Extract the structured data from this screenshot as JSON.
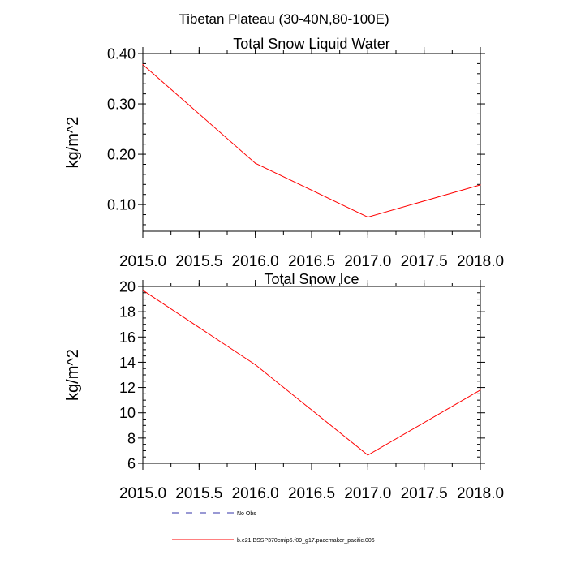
{
  "figure": {
    "title": "Tibetan Plateau (30-40N,80-100E)"
  },
  "chart_data": [
    {
      "type": "line",
      "title": "Total Snow Liquid Water",
      "xlabel": "",
      "ylabel": "kg/m^2",
      "xlim": [
        2015.0,
        2018.0
      ],
      "ylim": [
        0.047,
        0.4
      ],
      "xticks": [
        2015.0,
        2015.5,
        2016.0,
        2016.5,
        2017.0,
        2017.5,
        2018.0
      ],
      "xtick_labels": [
        "2015.0",
        "2015.5",
        "2016.0",
        "2016.5",
        "2017.0",
        "2017.5",
        "2018.0"
      ],
      "yticks": [
        0.1,
        0.2,
        0.3,
        0.4
      ],
      "ytick_labels": [
        "0.10",
        "0.20",
        "0.30",
        "0.40"
      ],
      "yminor_step": 0.02,
      "xminor_step": 0.25,
      "series": [
        {
          "name": "b.e21.BSSP370cmip6.f09_g17.pacemaker_pacific.006",
          "color": "#ff0000",
          "x": [
            2015.0,
            2016.0,
            2017.0,
            2018.0
          ],
          "y": [
            0.378,
            0.182,
            0.075,
            0.139
          ]
        }
      ]
    },
    {
      "type": "line",
      "title": "Total Snow Ice",
      "xlabel": "",
      "ylabel": "kg/m^2",
      "xlim": [
        2015.0,
        2018.0
      ],
      "ylim": [
        6,
        20
      ],
      "xticks": [
        2015.0,
        2015.5,
        2016.0,
        2016.5,
        2017.0,
        2017.5,
        2018.0
      ],
      "xtick_labels": [
        "2015.0",
        "2015.5",
        "2016.0",
        "2016.5",
        "2017.0",
        "2017.5",
        "2018.0"
      ],
      "yticks": [
        6,
        8,
        10,
        12,
        14,
        16,
        18,
        20
      ],
      "ytick_labels": [
        "6",
        "8",
        "10",
        "12",
        "14",
        "16",
        "18",
        "20"
      ],
      "yminor_step": 0.5,
      "xminor_step": 0.25,
      "series": [
        {
          "name": "b.e21.BSSP370cmip6.f09_g17.pacemaker_pacific.006",
          "color": "#ff0000",
          "x": [
            2015.0,
            2016.0,
            2017.0,
            2018.0
          ],
          "y": [
            19.7,
            13.8,
            6.65,
            11.8
          ]
        }
      ]
    }
  ],
  "legend": {
    "placement": "bottom",
    "items": [
      {
        "label": "No Obs",
        "color": "#3333aa",
        "style": "dashed"
      },
      {
        "label": "b.e21.BSSP370cmip6.f09_g17.pacemaker_pacific.006",
        "color": "#ff0000",
        "style": "solid"
      }
    ]
  }
}
